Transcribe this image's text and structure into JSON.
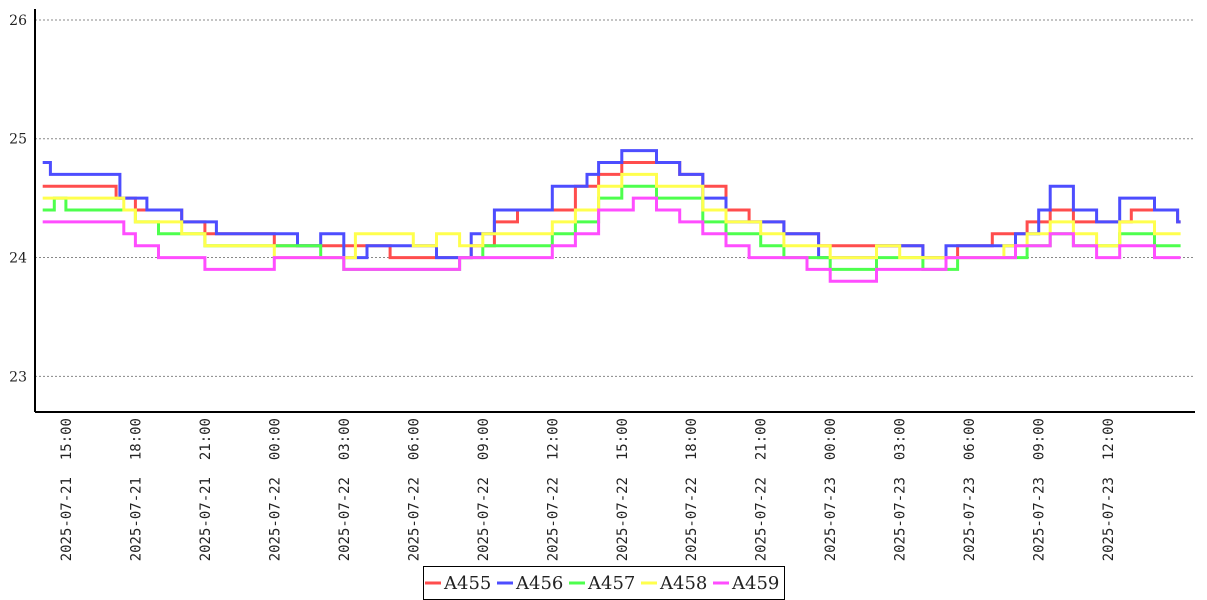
{
  "chart_data": {
    "type": "line",
    "title": "",
    "xlabel": "",
    "ylabel": "",
    "ylim": [
      22.7,
      26.05
    ],
    "yticks": [
      23,
      24,
      25,
      26
    ],
    "xlim": [
      "2025-07-21 13:40",
      "2025-07-23 15:45"
    ],
    "xticks": [
      "2025-07-21 15:00",
      "2025-07-21 18:00",
      "2025-07-21 21:00",
      "2025-07-22 00:00",
      "2025-07-22 03:00",
      "2025-07-22 06:00",
      "2025-07-22 09:00",
      "2025-07-22 12:00",
      "2025-07-22 15:00",
      "2025-07-22 18:00",
      "2025-07-22 21:00",
      "2025-07-23 00:00",
      "2025-07-23 03:00",
      "2025-07-23 06:00",
      "2025-07-23 09:00",
      "2025-07-23 12:00"
    ],
    "grid": "horizontal dotted",
    "legend_position": "bottom-center",
    "series": [
      {
        "name": "A455",
        "color": "#ff4d4d",
        "points": [
          [
            "2025-07-21 14:00",
            24.6
          ],
          [
            "2025-07-21 17:10",
            24.5
          ],
          [
            "2025-07-21 18:00",
            24.4
          ],
          [
            "2025-07-21 19:00",
            24.4
          ],
          [
            "2025-07-21 20:00",
            24.3
          ],
          [
            "2025-07-21 21:00",
            24.2
          ],
          [
            "2025-07-21 22:30",
            24.2
          ],
          [
            "2025-07-22 00:00",
            24.1
          ],
          [
            "2025-07-22 03:00",
            24.1
          ],
          [
            "2025-07-22 05:00",
            24.0
          ],
          [
            "2025-07-22 07:40",
            24.0
          ],
          [
            "2025-07-22 08:30",
            24.1
          ],
          [
            "2025-07-22 09:30",
            24.3
          ],
          [
            "2025-07-22 10:30",
            24.4
          ],
          [
            "2025-07-22 12:00",
            24.4
          ],
          [
            "2025-07-22 13:00",
            24.6
          ],
          [
            "2025-07-22 14:00",
            24.7
          ],
          [
            "2025-07-22 15:00",
            24.8
          ],
          [
            "2025-07-22 16:30",
            24.8
          ],
          [
            "2025-07-22 17:30",
            24.7
          ],
          [
            "2025-07-22 18:30",
            24.6
          ],
          [
            "2025-07-22 19:30",
            24.4
          ],
          [
            "2025-07-22 20:30",
            24.3
          ],
          [
            "2025-07-22 22:00",
            24.2
          ],
          [
            "2025-07-22 23:30",
            24.1
          ],
          [
            "2025-07-23 02:00",
            24.1
          ],
          [
            "2025-07-23 04:00",
            24.0
          ],
          [
            "2025-07-23 05:30",
            24.1
          ],
          [
            "2025-07-23 07:00",
            24.2
          ],
          [
            "2025-07-23 08:30",
            24.3
          ],
          [
            "2025-07-23 09:30",
            24.4
          ],
          [
            "2025-07-23 10:30",
            24.3
          ],
          [
            "2025-07-23 12:00",
            24.3
          ],
          [
            "2025-07-23 13:00",
            24.4
          ],
          [
            "2025-07-23 15:00",
            24.3
          ]
        ]
      },
      {
        "name": "A456",
        "color": "#4d4dff",
        "points": [
          [
            "2025-07-21 14:00",
            24.8
          ],
          [
            "2025-07-21 14:20",
            24.7
          ],
          [
            "2025-07-21 17:00",
            24.7
          ],
          [
            "2025-07-21 17:20",
            24.5
          ],
          [
            "2025-07-21 18:30",
            24.4
          ],
          [
            "2025-07-21 20:00",
            24.3
          ],
          [
            "2025-07-21 21:30",
            24.2
          ],
          [
            "2025-07-22 00:00",
            24.2
          ],
          [
            "2025-07-22 01:00",
            24.1
          ],
          [
            "2025-07-22 02:00",
            24.2
          ],
          [
            "2025-07-22 03:00",
            24.0
          ],
          [
            "2025-07-22 04:00",
            24.1
          ],
          [
            "2025-07-22 06:00",
            24.1
          ],
          [
            "2025-07-22 07:00",
            24.0
          ],
          [
            "2025-07-22 08:30",
            24.2
          ],
          [
            "2025-07-22 09:30",
            24.4
          ],
          [
            "2025-07-22 11:00",
            24.4
          ],
          [
            "2025-07-22 12:00",
            24.6
          ],
          [
            "2025-07-22 13:30",
            24.7
          ],
          [
            "2025-07-22 14:00",
            24.8
          ],
          [
            "2025-07-22 15:00",
            24.9
          ],
          [
            "2025-07-22 16:30",
            24.8
          ],
          [
            "2025-07-22 17:30",
            24.7
          ],
          [
            "2025-07-22 18:30",
            24.5
          ],
          [
            "2025-07-22 19:30",
            24.3
          ],
          [
            "2025-07-22 21:00",
            24.3
          ],
          [
            "2025-07-22 22:00",
            24.2
          ],
          [
            "2025-07-22 23:30",
            24.0
          ],
          [
            "2025-07-23 02:00",
            24.1
          ],
          [
            "2025-07-23 03:00",
            24.1
          ],
          [
            "2025-07-23 04:00",
            24.0
          ],
          [
            "2025-07-23 05:00",
            24.1
          ],
          [
            "2025-07-23 08:00",
            24.2
          ],
          [
            "2025-07-23 09:00",
            24.4
          ],
          [
            "2025-07-23 09:30",
            24.6
          ],
          [
            "2025-07-23 10:30",
            24.4
          ],
          [
            "2025-07-23 11:30",
            24.3
          ],
          [
            "2025-07-23 12:30",
            24.5
          ],
          [
            "2025-07-23 14:00",
            24.4
          ],
          [
            "2025-07-23 15:00",
            24.3
          ]
        ]
      },
      {
        "name": "A457",
        "color": "#4dff4d",
        "points": [
          [
            "2025-07-21 14:00",
            24.4
          ],
          [
            "2025-07-21 14:30",
            24.5
          ],
          [
            "2025-07-21 15:00",
            24.4
          ],
          [
            "2025-07-21 17:00",
            24.4
          ],
          [
            "2025-07-21 18:00",
            24.3
          ],
          [
            "2025-07-21 19:00",
            24.2
          ],
          [
            "2025-07-21 21:00",
            24.1
          ],
          [
            "2025-07-21 23:00",
            24.1
          ],
          [
            "2025-07-22 00:00",
            24.1
          ],
          [
            "2025-07-22 02:00",
            24.0
          ],
          [
            "2025-07-22 03:00",
            23.9
          ],
          [
            "2025-07-22 07:00",
            23.9
          ],
          [
            "2025-07-22 08:00",
            24.0
          ],
          [
            "2025-07-22 09:00",
            24.1
          ],
          [
            "2025-07-22 10:00",
            24.1
          ],
          [
            "2025-07-22 11:00",
            24.1
          ],
          [
            "2025-07-22 12:00",
            24.2
          ],
          [
            "2025-07-22 13:00",
            24.3
          ],
          [
            "2025-07-22 14:00",
            24.5
          ],
          [
            "2025-07-22 15:00",
            24.6
          ],
          [
            "2025-07-22 16:30",
            24.5
          ],
          [
            "2025-07-22 17:30",
            24.5
          ],
          [
            "2025-07-22 18:30",
            24.3
          ],
          [
            "2025-07-22 19:30",
            24.2
          ],
          [
            "2025-07-22 21:00",
            24.1
          ],
          [
            "2025-07-22 22:00",
            24.0
          ],
          [
            "2025-07-23 00:00",
            23.9
          ],
          [
            "2025-07-23 01:00",
            23.9
          ],
          [
            "2025-07-23 02:00",
            24.0
          ],
          [
            "2025-07-23 04:00",
            23.9
          ],
          [
            "2025-07-23 05:30",
            24.0
          ],
          [
            "2025-07-23 07:30",
            24.0
          ],
          [
            "2025-07-23 08:30",
            24.1
          ],
          [
            "2025-07-23 09:30",
            24.2
          ],
          [
            "2025-07-23 10:30",
            24.1
          ],
          [
            "2025-07-23 11:30",
            24.1
          ],
          [
            "2025-07-23 12:30",
            24.2
          ],
          [
            "2025-07-23 14:00",
            24.1
          ],
          [
            "2025-07-23 15:00",
            24.1
          ]
        ]
      },
      {
        "name": "A458",
        "color": "#ffff4d",
        "points": [
          [
            "2025-07-21 14:00",
            24.5
          ],
          [
            "2025-07-21 17:00",
            24.5
          ],
          [
            "2025-07-21 17:30",
            24.4
          ],
          [
            "2025-07-21 18:00",
            24.3
          ],
          [
            "2025-07-21 20:00",
            24.2
          ],
          [
            "2025-07-21 21:00",
            24.1
          ],
          [
            "2025-07-21 23:00",
            24.1
          ],
          [
            "2025-07-22 00:00",
            24.0
          ],
          [
            "2025-07-22 03:00",
            24.0
          ],
          [
            "2025-07-22 03:30",
            24.2
          ],
          [
            "2025-07-22 05:00",
            24.2
          ],
          [
            "2025-07-22 06:00",
            24.1
          ],
          [
            "2025-07-22 07:00",
            24.2
          ],
          [
            "2025-07-22 08:00",
            24.1
          ],
          [
            "2025-07-22 09:00",
            24.2
          ],
          [
            "2025-07-22 11:00",
            24.2
          ],
          [
            "2025-07-22 12:00",
            24.3
          ],
          [
            "2025-07-22 13:00",
            24.4
          ],
          [
            "2025-07-22 14:00",
            24.6
          ],
          [
            "2025-07-22 15:00",
            24.7
          ],
          [
            "2025-07-22 16:30",
            24.6
          ],
          [
            "2025-07-22 17:30",
            24.6
          ],
          [
            "2025-07-22 18:30",
            24.4
          ],
          [
            "2025-07-22 19:30",
            24.3
          ],
          [
            "2025-07-22 21:00",
            24.2
          ],
          [
            "2025-07-22 22:00",
            24.1
          ],
          [
            "2025-07-23 00:00",
            24.0
          ],
          [
            "2025-07-23 02:00",
            24.1
          ],
          [
            "2025-07-23 03:00",
            24.0
          ],
          [
            "2025-07-23 04:00",
            24.0
          ],
          [
            "2025-07-23 06:00",
            24.0
          ],
          [
            "2025-07-23 07:30",
            24.1
          ],
          [
            "2025-07-23 08:30",
            24.2
          ],
          [
            "2025-07-23 09:30",
            24.3
          ],
          [
            "2025-07-23 10:30",
            24.2
          ],
          [
            "2025-07-23 11:30",
            24.1
          ],
          [
            "2025-07-23 12:30",
            24.3
          ],
          [
            "2025-07-23 14:00",
            24.2
          ],
          [
            "2025-07-23 15:00",
            24.2
          ]
        ]
      },
      {
        "name": "A459",
        "color": "#ff4dff",
        "points": [
          [
            "2025-07-21 14:00",
            24.3
          ],
          [
            "2025-07-21 17:00",
            24.3
          ],
          [
            "2025-07-21 17:30",
            24.2
          ],
          [
            "2025-07-21 18:00",
            24.1
          ],
          [
            "2025-07-21 19:00",
            24.0
          ],
          [
            "2025-07-21 20:00",
            24.0
          ],
          [
            "2025-07-21 21:00",
            23.9
          ],
          [
            "2025-07-21 23:00",
            23.9
          ],
          [
            "2025-07-22 00:00",
            24.0
          ],
          [
            "2025-07-22 02:00",
            24.0
          ],
          [
            "2025-07-22 03:00",
            23.9
          ],
          [
            "2025-07-22 07:00",
            23.9
          ],
          [
            "2025-07-22 08:00",
            24.0
          ],
          [
            "2025-07-22 09:00",
            24.0
          ],
          [
            "2025-07-22 11:00",
            24.0
          ],
          [
            "2025-07-22 12:00",
            24.1
          ],
          [
            "2025-07-22 13:00",
            24.2
          ],
          [
            "2025-07-22 14:00",
            24.4
          ],
          [
            "2025-07-22 15:00",
            24.4
          ],
          [
            "2025-07-22 15:30",
            24.5
          ],
          [
            "2025-07-22 16:30",
            24.4
          ],
          [
            "2025-07-22 17:30",
            24.3
          ],
          [
            "2025-07-22 18:30",
            24.2
          ],
          [
            "2025-07-22 19:30",
            24.1
          ],
          [
            "2025-07-22 20:30",
            24.0
          ],
          [
            "2025-07-22 22:00",
            24.0
          ],
          [
            "2025-07-22 23:00",
            23.9
          ],
          [
            "2025-07-23 00:00",
            23.8
          ],
          [
            "2025-07-23 01:00",
            23.8
          ],
          [
            "2025-07-23 02:00",
            23.9
          ],
          [
            "2025-07-23 04:00",
            23.9
          ],
          [
            "2025-07-23 05:00",
            24.0
          ],
          [
            "2025-07-23 07:00",
            24.0
          ],
          [
            "2025-07-23 08:00",
            24.1
          ],
          [
            "2025-07-23 09:30",
            24.2
          ],
          [
            "2025-07-23 10:30",
            24.1
          ],
          [
            "2025-07-23 11:30",
            24.0
          ],
          [
            "2025-07-23 12:30",
            24.1
          ],
          [
            "2025-07-23 14:00",
            24.0
          ],
          [
            "2025-07-23 15:00",
            24.0
          ]
        ]
      }
    ]
  }
}
